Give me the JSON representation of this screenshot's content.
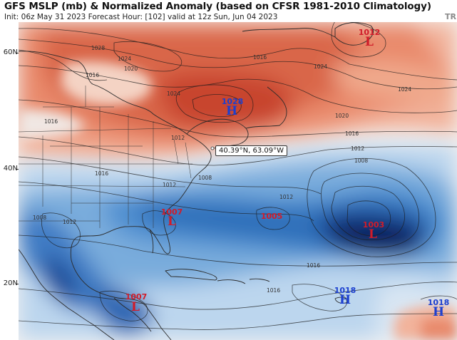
{
  "header": {
    "title": "GFS MSLP (mb) & Normalized Anomaly (based on CFSR 1981-2010 Climatology)",
    "subtitle": "Init: 06z May 31 2023   Forecast Hour: [102]   valid at 12z Sun, Jun 04 2023",
    "brand": "TR"
  },
  "latitude_labels": [
    "60N",
    "40N",
    "20N"
  ],
  "cursor_readout": "40.39°N, 63.09°W",
  "pressure_centers": [
    {
      "type": "low",
      "value": "1012",
      "letter": "L",
      "color": "#d01c2a"
    },
    {
      "type": "high",
      "value": "1028",
      "letter": "H",
      "color": "#1b3fd0"
    },
    {
      "type": "low",
      "value": "1007",
      "letter": "L",
      "color": "#d01c2a"
    },
    {
      "type": "low",
      "value": "1005",
      "letter": "",
      "color": "#d01c2a"
    },
    {
      "type": "low",
      "value": "1003",
      "letter": "L",
      "color": "#d01c2a"
    },
    {
      "type": "low",
      "value": "1007",
      "letter": "L",
      "color": "#d01c2a"
    },
    {
      "type": "high",
      "value": "1018",
      "letter": "H",
      "color": "#1b3fd0"
    },
    {
      "type": "high",
      "value": "1018",
      "letter": "H",
      "color": "#1b3fd0"
    }
  ],
  "isobar_labels": [
    "1028",
    "1024",
    "1020",
    "1016",
    "1024",
    "1016",
    "1016",
    "1012",
    "1024",
    "1024",
    "1020",
    "1016",
    "1012",
    "1008",
    "1016",
    "1012",
    "1008",
    "1008",
    "1012",
    "1016",
    "1016",
    "1012"
  ],
  "anomaly_colors": {
    "positive_strong": "#c8452f",
    "positive": "#e98a6c",
    "positive_weak": "#f7c6b1",
    "neutral": "#f4f2f1",
    "negative_weak": "#bcd6ee",
    "negative": "#4f8fd0",
    "negative_strong": "#1f5aa8",
    "negative_extreme": "#10245e"
  }
}
